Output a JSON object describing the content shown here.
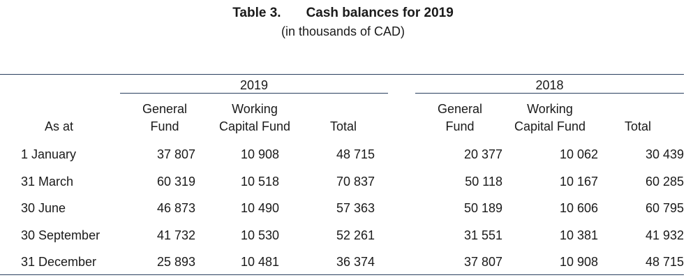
{
  "title": {
    "number": "Table 3.",
    "text": "Cash balances for 2019",
    "subtitle": "(in thousands of CAD)"
  },
  "table": {
    "row_header_label": "As at",
    "groups": [
      {
        "year": "2019",
        "columns": [
          {
            "line1": "General",
            "line2": "Fund"
          },
          {
            "line1": "Working",
            "line2": "Capital Fund"
          },
          {
            "line1": "",
            "line2": "Total"
          }
        ]
      },
      {
        "year": "2018",
        "columns": [
          {
            "line1": "General",
            "line2": "Fund"
          },
          {
            "line1": "Working",
            "line2": "Capital Fund"
          },
          {
            "line1": "",
            "line2": "Total"
          }
        ]
      }
    ],
    "rows": [
      {
        "label": "1 January",
        "values": [
          "37 807",
          "10 908",
          "48 715",
          "20 377",
          "10 062",
          "30 439"
        ]
      },
      {
        "label": "31 March",
        "values": [
          "60 319",
          "10 518",
          "70 837",
          "50 118",
          "10 167",
          "60 285"
        ]
      },
      {
        "label": "30 June",
        "values": [
          "46 873",
          "10 490",
          "57 363",
          "50 189",
          "10 606",
          "60 795"
        ]
      },
      {
        "label": "30 September",
        "values": [
          "41 732",
          "10 530",
          "52 261",
          "31 551",
          "10 381",
          "41 932"
        ]
      },
      {
        "label": "31 December",
        "values": [
          "25 893",
          "10 481",
          "36 374",
          "37 807",
          "10 908",
          "48 715"
        ]
      }
    ]
  }
}
